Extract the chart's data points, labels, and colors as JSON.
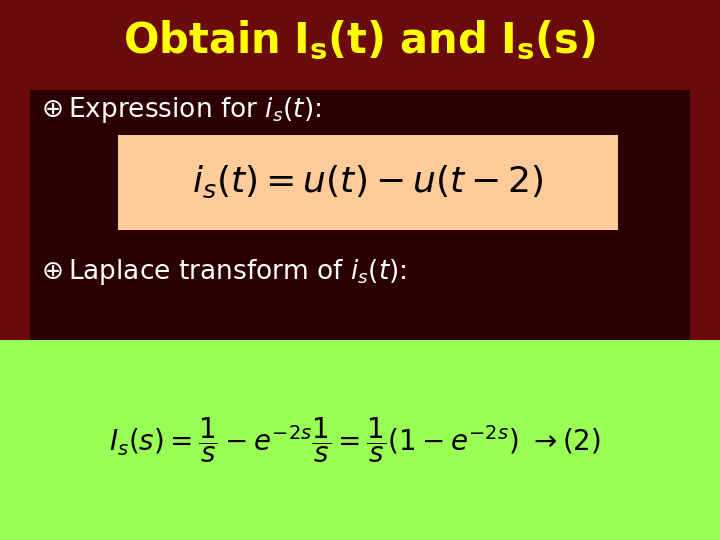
{
  "title_color": "#FFFF00",
  "title_fontsize": 30,
  "bg_color": "#7A1010",
  "bullet_color": "#FFFFFF",
  "bullet_fontsize": 19,
  "eq1_box_color": "#FFCC99",
  "eq1_fontsize": 26,
  "eq2_box_color": "#99FF55",
  "eq2_fontsize": 20,
  "bullet_symbol": "⊕"
}
